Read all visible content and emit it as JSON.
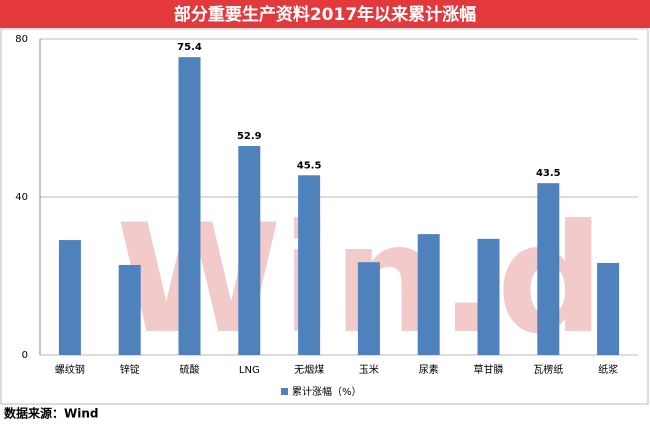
{
  "chart_data": {
    "type": "bar",
    "title": "部分重要生产资料2017年以来累计涨幅",
    "categories": [
      "螺纹钢",
      "锌锭",
      "硫酸",
      "LNG",
      "无烟煤",
      "玉米",
      "尿素",
      "草甘膦",
      "瓦楞纸",
      "纸浆"
    ],
    "series": [
      {
        "name": "累计涨幅（%）",
        "color": "#4f81bd",
        "values": [
          29.1,
          22.8,
          75.4,
          52.9,
          45.5,
          23.5,
          30.6,
          29.4,
          43.5,
          23.3
        ],
        "value_labels": [
          null,
          null,
          "75.4",
          "52.9",
          "45.5",
          null,
          null,
          null,
          "43.5",
          null
        ]
      }
    ],
    "ylim": [
      0,
      80
    ],
    "yticks": [
      0,
      40,
      80
    ],
    "grid": true,
    "watermark": "Win.d",
    "source": "数据来源：Wind"
  }
}
